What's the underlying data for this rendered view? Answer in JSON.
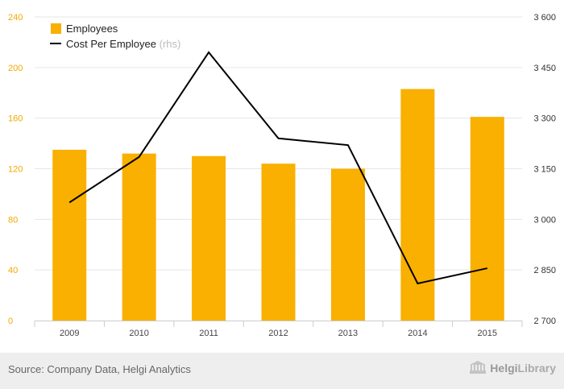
{
  "chart_data": {
    "type": "bar+line",
    "categories": [
      "2009",
      "2010",
      "2011",
      "2012",
      "2013",
      "2014",
      "2015"
    ],
    "series": [
      {
        "name": "Employees",
        "type": "bar",
        "axis": "left",
        "values": [
          135,
          132,
          130,
          124,
          120,
          183,
          161
        ]
      },
      {
        "name": "Cost Per Employee",
        "legend_suffix": "(rhs)",
        "type": "line",
        "axis": "right",
        "values": [
          3050,
          3185,
          3495,
          3240,
          3220,
          2810,
          2855
        ]
      }
    ],
    "y_left": {
      "min": 0,
      "max": 240,
      "ticks": [
        "0",
        "40",
        "80",
        "120",
        "160",
        "200",
        "240"
      ]
    },
    "y_right": {
      "min": 2700,
      "max": 3600,
      "ticks": [
        "2 700",
        "2 850",
        "3 000",
        "3 150",
        "3 300",
        "3 450",
        "3 600"
      ]
    },
    "grid": true,
    "legend_position": "top-left",
    "colors": {
      "bar": "#f9b000",
      "line": "#000000",
      "left_axis_text": "#f2a900",
      "right_axis_text": "#333333",
      "grid": "#e6e6e6"
    }
  },
  "footer": {
    "source": "Source: Company Data, Helgi Analytics",
    "brand_prefix": "Helgi",
    "brand_suffix": "Library",
    "brand_icon": "helgi-library-logo-icon"
  }
}
